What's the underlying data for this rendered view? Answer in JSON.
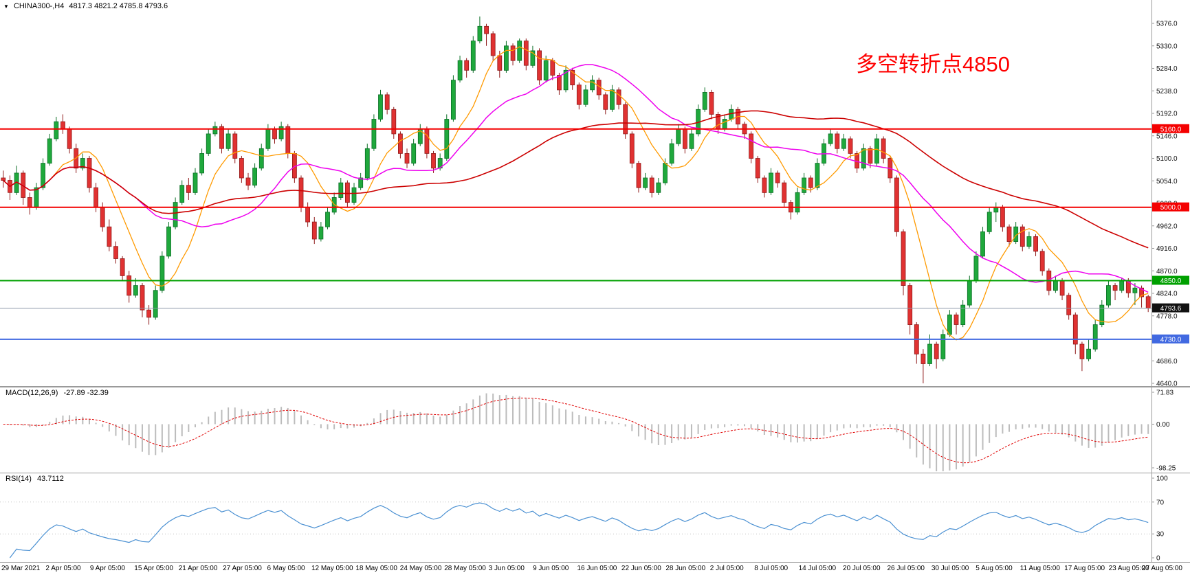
{
  "header": {
    "symbol": "CHINA300-,H4",
    "ohlc": "4817.3 4821.2 4785.8 4793.6"
  },
  "annotation": {
    "text": "多空转折点4850",
    "color": "#ff0000"
  },
  "colors": {
    "background": "#ffffff",
    "up": "#1fa83c",
    "up_border": "#0b6e26",
    "down": "#e03232",
    "down_border": "#8f1a1a",
    "axis_text": "#111111",
    "separator": "#9a9a9a",
    "current_price_line": "#8b97a8",
    "current_price_chip": "#111111"
  },
  "chart_data": {
    "type": "candlestick",
    "title": "CHINA300-,H4",
    "symbol": "CHINA300-",
    "timeframe": "H4",
    "last_bar": {
      "open": 4817.3,
      "high": 4821.2,
      "low": 4785.8,
      "close": 4793.6
    },
    "x_labels": [
      "29 Mar 2021",
      "2 Apr 05:00",
      "9 Apr 05:00",
      "15 Apr 05:00",
      "21 Apr 05:00",
      "27 Apr 05:00",
      "6 May 05:00",
      "12 May 05:00",
      "18 May 05:00",
      "24 May 05:00",
      "28 May 05:00",
      "3 Jun 05:00",
      "9 Jun 05:00",
      "16 Jun 05:00",
      "22 Jun 05:00",
      "28 Jun 05:00",
      "2 Jul 05:00",
      "8 Jul 05:00",
      "14 Jul 05:00",
      "20 Jul 05:00",
      "26 Jul 05:00",
      "30 Jul 05:00",
      "5 Aug 05:00",
      "11 Aug 05:00",
      "17 Aug 05:00",
      "23 Aug 05:00",
      "27 Aug 05:00"
    ],
    "y_axis": {
      "min": 4640,
      "max": 5376,
      "ticks": [
        {
          "v": 5376,
          "label": "5376.0"
        },
        {
          "v": 5330,
          "label": "5330.0"
        },
        {
          "v": 5284,
          "label": "5284.0"
        },
        {
          "v": 5238,
          "label": "5238.0"
        },
        {
          "v": 5192,
          "label": "5192.0"
        },
        {
          "v": 5146,
          "label": "5146.0"
        },
        {
          "v": 5100,
          "label": "5100.0"
        },
        {
          "v": 5054,
          "label": "5054.0"
        },
        {
          "v": 5008,
          "label": "5008.0"
        },
        {
          "v": 4962,
          "label": "4962.0"
        },
        {
          "v": 4916,
          "label": "4916.0"
        },
        {
          "v": 4870,
          "label": "4870.0"
        },
        {
          "v": 4824,
          "label": "4824.0"
        },
        {
          "v": 4778,
          "label": "4778.0"
        },
        {
          "v": 4732,
          "label": "4732.0"
        },
        {
          "v": 4686,
          "label": "4686.0"
        },
        {
          "v": 4640,
          "label": "4640.0"
        }
      ]
    },
    "levels": [
      {
        "value": 5160.0,
        "label": "5160.0",
        "color": "#f40000",
        "width": 2
      },
      {
        "value": 5000.0,
        "label": "5000.0",
        "color": "#f40000",
        "width": 2
      },
      {
        "value": 4850.0,
        "label": "4850.0",
        "color": "#00a000",
        "width": 2
      },
      {
        "value": 4730.0,
        "label": "4730.0",
        "color": "#4169e1",
        "width": 2
      },
      {
        "value": 4793.6,
        "label": "4793.6",
        "color": "#111111",
        "width": 1,
        "current": true
      }
    ],
    "moving_averages": [
      {
        "name": "ma-fast",
        "period": 8,
        "color": "#ff9a00",
        "width": 1.3
      },
      {
        "name": "ma-mid",
        "period": 21,
        "color": "#ee00ee",
        "width": 1.5
      },
      {
        "name": "ma-slow",
        "period": 60,
        "color": "#cc0000",
        "width": 1.6
      }
    ],
    "indicators": [
      {
        "name": "MACD",
        "label": "MACD(12,26,9)",
        "values_label": "-27.89 -32.39",
        "params": [
          12,
          26,
          9
        ],
        "range": [
          -98.25,
          71.83
        ],
        "ticks": [
          {
            "v": 71.83,
            "label": "71.83"
          },
          {
            "v": 0,
            "label": "0.00"
          },
          {
            "v": -98.25,
            "label": "-98.25"
          }
        ],
        "histogram_color": "#bcbcbc",
        "signal_color": "#e00000"
      },
      {
        "name": "RSI",
        "label": "RSI(14)",
        "values_label": "43.7112",
        "period": 14,
        "ticks": [
          {
            "v": 100,
            "label": "100"
          },
          {
            "v": 70,
            "label": "70"
          },
          {
            "v": 30,
            "label": "30"
          },
          {
            "v": 0,
            "label": "0"
          }
        ],
        "guide_levels": [
          70,
          30
        ],
        "line_color": "#4a90d2"
      }
    ],
    "candles": [
      [
        5060,
        5075,
        5040,
        5055
      ],
      [
        5055,
        5065,
        5015,
        5030
      ],
      [
        5030,
        5085,
        5025,
        5070
      ],
      [
        5070,
        5075,
        5005,
        5020
      ],
      [
        5020,
        5030,
        4985,
        5000
      ],
      [
        5000,
        5050,
        4995,
        5040
      ],
      [
        5040,
        5100,
        5035,
        5090
      ],
      [
        5090,
        5150,
        5085,
        5140
      ],
      [
        5140,
        5185,
        5135,
        5175
      ],
      [
        5175,
        5190,
        5150,
        5160
      ],
      [
        5160,
        5165,
        5110,
        5120
      ],
      [
        5120,
        5130,
        5070,
        5080
      ],
      [
        5080,
        5110,
        5075,
        5100
      ],
      [
        5100,
        5105,
        5030,
        5040
      ],
      [
        5040,
        5050,
        4990,
        5000
      ],
      [
        5000,
        5010,
        4950,
        4960
      ],
      [
        4960,
        4975,
        4910,
        4920
      ],
      [
        4920,
        4930,
        4885,
        4895
      ],
      [
        4895,
        4900,
        4850,
        4860
      ],
      [
        4860,
        4870,
        4805,
        4820
      ],
      [
        4820,
        4855,
        4815,
        4840
      ],
      [
        4840,
        4845,
        4775,
        4790
      ],
      [
        4790,
        4800,
        4760,
        4775
      ],
      [
        4775,
        4840,
        4770,
        4830
      ],
      [
        4830,
        4910,
        4825,
        4900
      ],
      [
        4900,
        4970,
        4895,
        4960
      ],
      [
        4960,
        5020,
        4955,
        5010
      ],
      [
        5010,
        5055,
        5005,
        5045
      ],
      [
        5045,
        5060,
        5015,
        5030
      ],
      [
        5030,
        5080,
        5025,
        5070
      ],
      [
        5070,
        5120,
        5065,
        5110
      ],
      [
        5110,
        5160,
        5105,
        5150
      ],
      [
        5150,
        5175,
        5145,
        5165
      ],
      [
        5165,
        5170,
        5110,
        5120
      ],
      [
        5120,
        5160,
        5115,
        5150
      ],
      [
        5150,
        5155,
        5090,
        5100
      ],
      [
        5100,
        5105,
        5050,
        5060
      ],
      [
        5060,
        5070,
        5035,
        5045
      ],
      [
        5045,
        5090,
        5040,
        5080
      ],
      [
        5080,
        5130,
        5075,
        5120
      ],
      [
        5120,
        5170,
        5115,
        5160
      ],
      [
        5160,
        5165,
        5130,
        5140
      ],
      [
        5140,
        5175,
        5135,
        5165
      ],
      [
        5165,
        5170,
        5100,
        5110
      ],
      [
        5110,
        5115,
        5050,
        5060
      ],
      [
        5060,
        5065,
        4990,
        5000
      ],
      [
        5000,
        5010,
        4960,
        4970
      ],
      [
        4970,
        4980,
        4925,
        4935
      ],
      [
        4935,
        4970,
        4930,
        4960
      ],
      [
        4960,
        5000,
        4955,
        4990
      ],
      [
        4990,
        5030,
        4985,
        5020
      ],
      [
        5020,
        5060,
        5015,
        5050
      ],
      [
        5050,
        5055,
        5000,
        5010
      ],
      [
        5010,
        5050,
        5005,
        5040
      ],
      [
        5040,
        5070,
        5035,
        5060
      ],
      [
        5060,
        5130,
        5055,
        5120
      ],
      [
        5120,
        5190,
        5115,
        5180
      ],
      [
        5180,
        5240,
        5175,
        5230
      ],
      [
        5230,
        5235,
        5190,
        5200
      ],
      [
        5200,
        5205,
        5140,
        5150
      ],
      [
        5150,
        5155,
        5100,
        5110
      ],
      [
        5110,
        5120,
        5080,
        5090
      ],
      [
        5090,
        5140,
        5085,
        5130
      ],
      [
        5130,
        5170,
        5125,
        5160
      ],
      [
        5160,
        5165,
        5100,
        5110
      ],
      [
        5110,
        5115,
        5070,
        5080
      ],
      [
        5080,
        5110,
        5075,
        5100
      ],
      [
        5100,
        5190,
        5095,
        5180
      ],
      [
        5180,
        5270,
        5175,
        5260
      ],
      [
        5260,
        5310,
        5255,
        5300
      ],
      [
        5300,
        5305,
        5265,
        5280
      ],
      [
        5280,
        5350,
        5275,
        5340
      ],
      [
        5340,
        5390,
        5335,
        5370
      ],
      [
        5370,
        5375,
        5330,
        5355
      ],
      [
        5355,
        5360,
        5300,
        5310
      ],
      [
        5310,
        5320,
        5265,
        5280
      ],
      [
        5280,
        5340,
        5275,
        5330
      ],
      [
        5330,
        5335,
        5290,
        5300
      ],
      [
        5300,
        5345,
        5295,
        5340
      ],
      [
        5340,
        5345,
        5280,
        5290
      ],
      [
        5290,
        5330,
        5285,
        5320
      ],
      [
        5320,
        5325,
        5250,
        5260
      ],
      [
        5260,
        5310,
        5255,
        5300
      ],
      [
        5300,
        5305,
        5260,
        5270
      ],
      [
        5270,
        5275,
        5230,
        5240
      ],
      [
        5240,
        5290,
        5235,
        5280
      ],
      [
        5280,
        5285,
        5240,
        5250
      ],
      [
        5250,
        5255,
        5200,
        5210
      ],
      [
        5210,
        5250,
        5205,
        5240
      ],
      [
        5240,
        5270,
        5235,
        5260
      ],
      [
        5260,
        5265,
        5220,
        5230
      ],
      [
        5230,
        5235,
        5190,
        5200
      ],
      [
        5200,
        5250,
        5195,
        5240
      ],
      [
        5240,
        5245,
        5200,
        5210
      ],
      [
        5210,
        5215,
        5140,
        5150
      ],
      [
        5150,
        5155,
        5080,
        5090
      ],
      [
        5090,
        5095,
        5030,
        5040
      ],
      [
        5040,
        5070,
        5035,
        5060
      ],
      [
        5060,
        5065,
        5020,
        5030
      ],
      [
        5030,
        5060,
        5025,
        5050
      ],
      [
        5050,
        5100,
        5045,
        5090
      ],
      [
        5090,
        5140,
        5085,
        5130
      ],
      [
        5130,
        5170,
        5125,
        5160
      ],
      [
        5160,
        5165,
        5110,
        5120
      ],
      [
        5120,
        5160,
        5115,
        5150
      ],
      [
        5150,
        5210,
        5145,
        5200
      ],
      [
        5200,
        5245,
        5195,
        5235
      ],
      [
        5235,
        5240,
        5180,
        5190
      ],
      [
        5190,
        5195,
        5150,
        5160
      ],
      [
        5160,
        5190,
        5155,
        5180
      ],
      [
        5180,
        5210,
        5175,
        5200
      ],
      [
        5200,
        5205,
        5160,
        5170
      ],
      [
        5170,
        5175,
        5140,
        5150
      ],
      [
        5150,
        5155,
        5090,
        5100
      ],
      [
        5100,
        5105,
        5050,
        5060
      ],
      [
        5060,
        5065,
        5020,
        5030
      ],
      [
        5030,
        5080,
        5025,
        5070
      ],
      [
        5070,
        5075,
        5040,
        5050
      ],
      [
        5050,
        5055,
        5000,
        5010
      ],
      [
        5010,
        5015,
        4975,
        4990
      ],
      [
        4990,
        5040,
        4985,
        5030
      ],
      [
        5030,
        5070,
        5025,
        5060
      ],
      [
        5060,
        5065,
        5030,
        5040
      ],
      [
        5040,
        5100,
        5035,
        5090
      ],
      [
        5090,
        5140,
        5085,
        5130
      ],
      [
        5130,
        5160,
        5125,
        5150
      ],
      [
        5150,
        5155,
        5110,
        5120
      ],
      [
        5120,
        5150,
        5115,
        5140
      ],
      [
        5140,
        5145,
        5100,
        5110
      ],
      [
        5110,
        5115,
        5070,
        5080
      ],
      [
        5080,
        5130,
        5075,
        5120
      ],
      [
        5120,
        5125,
        5080,
        5090
      ],
      [
        5090,
        5150,
        5085,
        5140
      ],
      [
        5140,
        5145,
        5090,
        5100
      ],
      [
        5100,
        5105,
        5050,
        5060
      ],
      [
        5060,
        5065,
        4940,
        4950
      ],
      [
        4950,
        4955,
        4820,
        4840
      ],
      [
        4840,
        4845,
        4740,
        4760
      ],
      [
        4760,
        4765,
        4680,
        4700
      ],
      [
        4700,
        4710,
        4640,
        4680
      ],
      [
        4680,
        4740,
        4675,
        4720
      ],
      [
        4720,
        4725,
        4670,
        4690
      ],
      [
        4690,
        4750,
        4685,
        4740
      ],
      [
        4740,
        4790,
        4735,
        4780
      ],
      [
        4780,
        4785,
        4740,
        4760
      ],
      [
        4760,
        4810,
        4755,
        4800
      ],
      [
        4800,
        4860,
        4795,
        4850
      ],
      [
        4850,
        4910,
        4845,
        4900
      ],
      [
        4900,
        4960,
        4895,
        4950
      ],
      [
        4950,
        5000,
        4945,
        4990
      ],
      [
        4990,
        5010,
        4970,
        5000
      ],
      [
        5000,
        5005,
        4950,
        4960
      ],
      [
        4960,
        4965,
        4920,
        4930
      ],
      [
        4930,
        4970,
        4925,
        4960
      ],
      [
        4960,
        4965,
        4910,
        4920
      ],
      [
        4920,
        4950,
        4915,
        4940
      ],
      [
        4940,
        4945,
        4900,
        4910
      ],
      [
        4910,
        4915,
        4860,
        4870
      ],
      [
        4870,
        4875,
        4820,
        4830
      ],
      [
        4830,
        4860,
        4825,
        4850
      ],
      [
        4850,
        4855,
        4810,
        4820
      ],
      [
        4820,
        4825,
        4770,
        4780
      ],
      [
        4780,
        4785,
        4700,
        4720
      ],
      [
        4720,
        4725,
        4665,
        4690
      ],
      [
        4690,
        4730,
        4685,
        4710
      ],
      [
        4710,
        4770,
        4705,
        4760
      ],
      [
        4760,
        4810,
        4755,
        4800
      ],
      [
        4800,
        4850,
        4795,
        4840
      ],
      [
        4840,
        4845,
        4810,
        4830
      ],
      [
        4830,
        4855,
        4825,
        4850
      ],
      [
        4850,
        4855,
        4815,
        4825
      ],
      [
        4825,
        4845,
        4800,
        4835
      ],
      [
        4835,
        4840,
        4795,
        4817
      ],
      [
        4817.3,
        4821.2,
        4785.8,
        4793.6
      ]
    ]
  }
}
